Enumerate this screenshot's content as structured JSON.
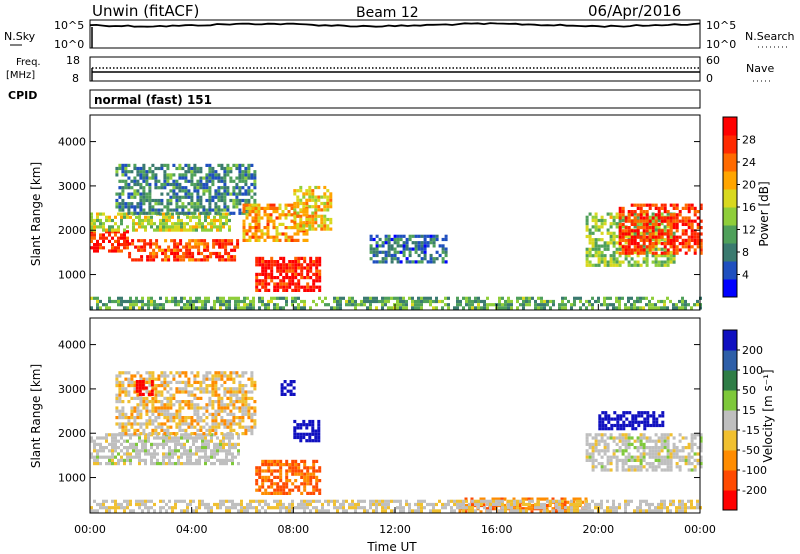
{
  "header": {
    "site": "Unwin (fitACF)",
    "beam": "Beam 12",
    "date": "06/Apr/2016"
  },
  "panels": {
    "nsky": {
      "left_label": "N.Sky",
      "right_label": "N.Search",
      "ticks_left": [
        "10^5",
        "10^0"
      ],
      "ticks_right": [
        "10^5",
        "10^0"
      ]
    },
    "freq": {
      "left_label_1": "Freq.",
      "left_label_2": "[MHz]",
      "right_label": "Nave",
      "ticks_left": [
        "18",
        "8"
      ],
      "ticks_right": [
        "60",
        "0"
      ]
    },
    "cpid": {
      "label": "CPID",
      "mode": "normal (fast) 151"
    }
  },
  "colors": {
    "power_scale": [
      "#0000ff",
      "#1f4fbf",
      "#3a7a6f",
      "#4fa05a",
      "#8fce3a",
      "#d8d81f",
      "#ffa500",
      "#ff6a00",
      "#ff2a00",
      "#ff0000"
    ],
    "velocity_scale": [
      "#1010c0",
      "#2e5fa8",
      "#2f7d46",
      "#7ec83a",
      "#bfbfbf",
      "#f0c030",
      "#ff8c00",
      "#ff4a00",
      "#ff0000"
    ]
  },
  "chart_data": [
    {
      "type": "heatmap",
      "name": "Power",
      "ylabel": "Slant Range [km]",
      "yticks": [
        "1000",
        "2000",
        "3000",
        "4000"
      ],
      "ylim": [
        200,
        4600
      ],
      "colorbar_label": "Power [dB]",
      "colorbar_ticks": [
        "4",
        "8",
        "12",
        "16",
        "20",
        "24",
        "28"
      ],
      "regions": [
        {
          "t0": 0.0,
          "t1": 1.5,
          "r0": 1500,
          "r1": 2000,
          "level": 0.9
        },
        {
          "t0": 1.5,
          "t1": 5.8,
          "r0": 1300,
          "r1": 1800,
          "level": 0.85
        },
        {
          "t0": 0.0,
          "t1": 5.5,
          "r0": 2000,
          "r1": 2400,
          "level": 0.5
        },
        {
          "t0": 1.0,
          "t1": 6.5,
          "r0": 2400,
          "r1": 3500,
          "level": 0.25
        },
        {
          "t0": 6.5,
          "t1": 9.0,
          "r0": 650,
          "r1": 1400,
          "level": 0.95
        },
        {
          "t0": 6.0,
          "t1": 8.5,
          "r0": 1800,
          "r1": 2600,
          "level": 0.7
        },
        {
          "t0": 8.0,
          "t1": 9.5,
          "r0": 2000,
          "r1": 3000,
          "level": 0.6
        },
        {
          "t0": 11.0,
          "t1": 14.0,
          "r0": 1300,
          "r1": 1900,
          "level": 0.2
        },
        {
          "t0": 19.5,
          "t1": 23.0,
          "r0": 1200,
          "r1": 2400,
          "level": 0.45
        },
        {
          "t0": 20.8,
          "t1": 24.0,
          "r0": 1500,
          "r1": 2600,
          "level": 0.9
        },
        {
          "t0": 0.0,
          "t1": 24.0,
          "r0": 250,
          "r1": 500,
          "level": 0.35
        }
      ]
    },
    {
      "type": "heatmap",
      "name": "Velocity",
      "ylabel": "Slant Range [km]",
      "yticks": [
        "1000",
        "2000",
        "3000",
        "4000"
      ],
      "ylim": [
        200,
        4600
      ],
      "xlabel": "Time UT",
      "xticks": [
        "00:00",
        "04:00",
        "08:00",
        "12:00",
        "16:00",
        "20:00",
        "00:00"
      ],
      "colorbar_label": "Velocity [m s⁻¹]",
      "colorbar_ticks": [
        "200",
        "100",
        "50",
        "15",
        "-15",
        "-50",
        "-100",
        "-200"
      ],
      "regions": [
        {
          "t0": 0.0,
          "t1": 5.8,
          "r0": 1300,
          "r1": 2000,
          "vel": 0
        },
        {
          "t0": 1.0,
          "t1": 6.5,
          "r0": 2000,
          "r1": 3400,
          "vel": -20
        },
        {
          "t0": 6.5,
          "t1": 9.0,
          "r0": 650,
          "r1": 1400,
          "vel": -80
        },
        {
          "t0": 8.0,
          "t1": 9.0,
          "r0": 1800,
          "r1": 2300,
          "vel": 180
        },
        {
          "t0": 1.8,
          "t1": 2.4,
          "r0": 2900,
          "r1": 3200,
          "vel": -200
        },
        {
          "t0": 7.5,
          "t1": 8.0,
          "r0": 2900,
          "r1": 3200,
          "vel": 200
        },
        {
          "t0": 20.0,
          "t1": 22.5,
          "r0": 2100,
          "r1": 2500,
          "vel": 180
        },
        {
          "t0": 19.5,
          "t1": 24.0,
          "r0": 1200,
          "r1": 2000,
          "vel": 0
        },
        {
          "t0": 14.5,
          "t1": 19.5,
          "r0": 250,
          "r1": 550,
          "vel": -70
        },
        {
          "t0": 0.0,
          "t1": 24.0,
          "r0": 250,
          "r1": 500,
          "vel": -10
        }
      ]
    }
  ]
}
